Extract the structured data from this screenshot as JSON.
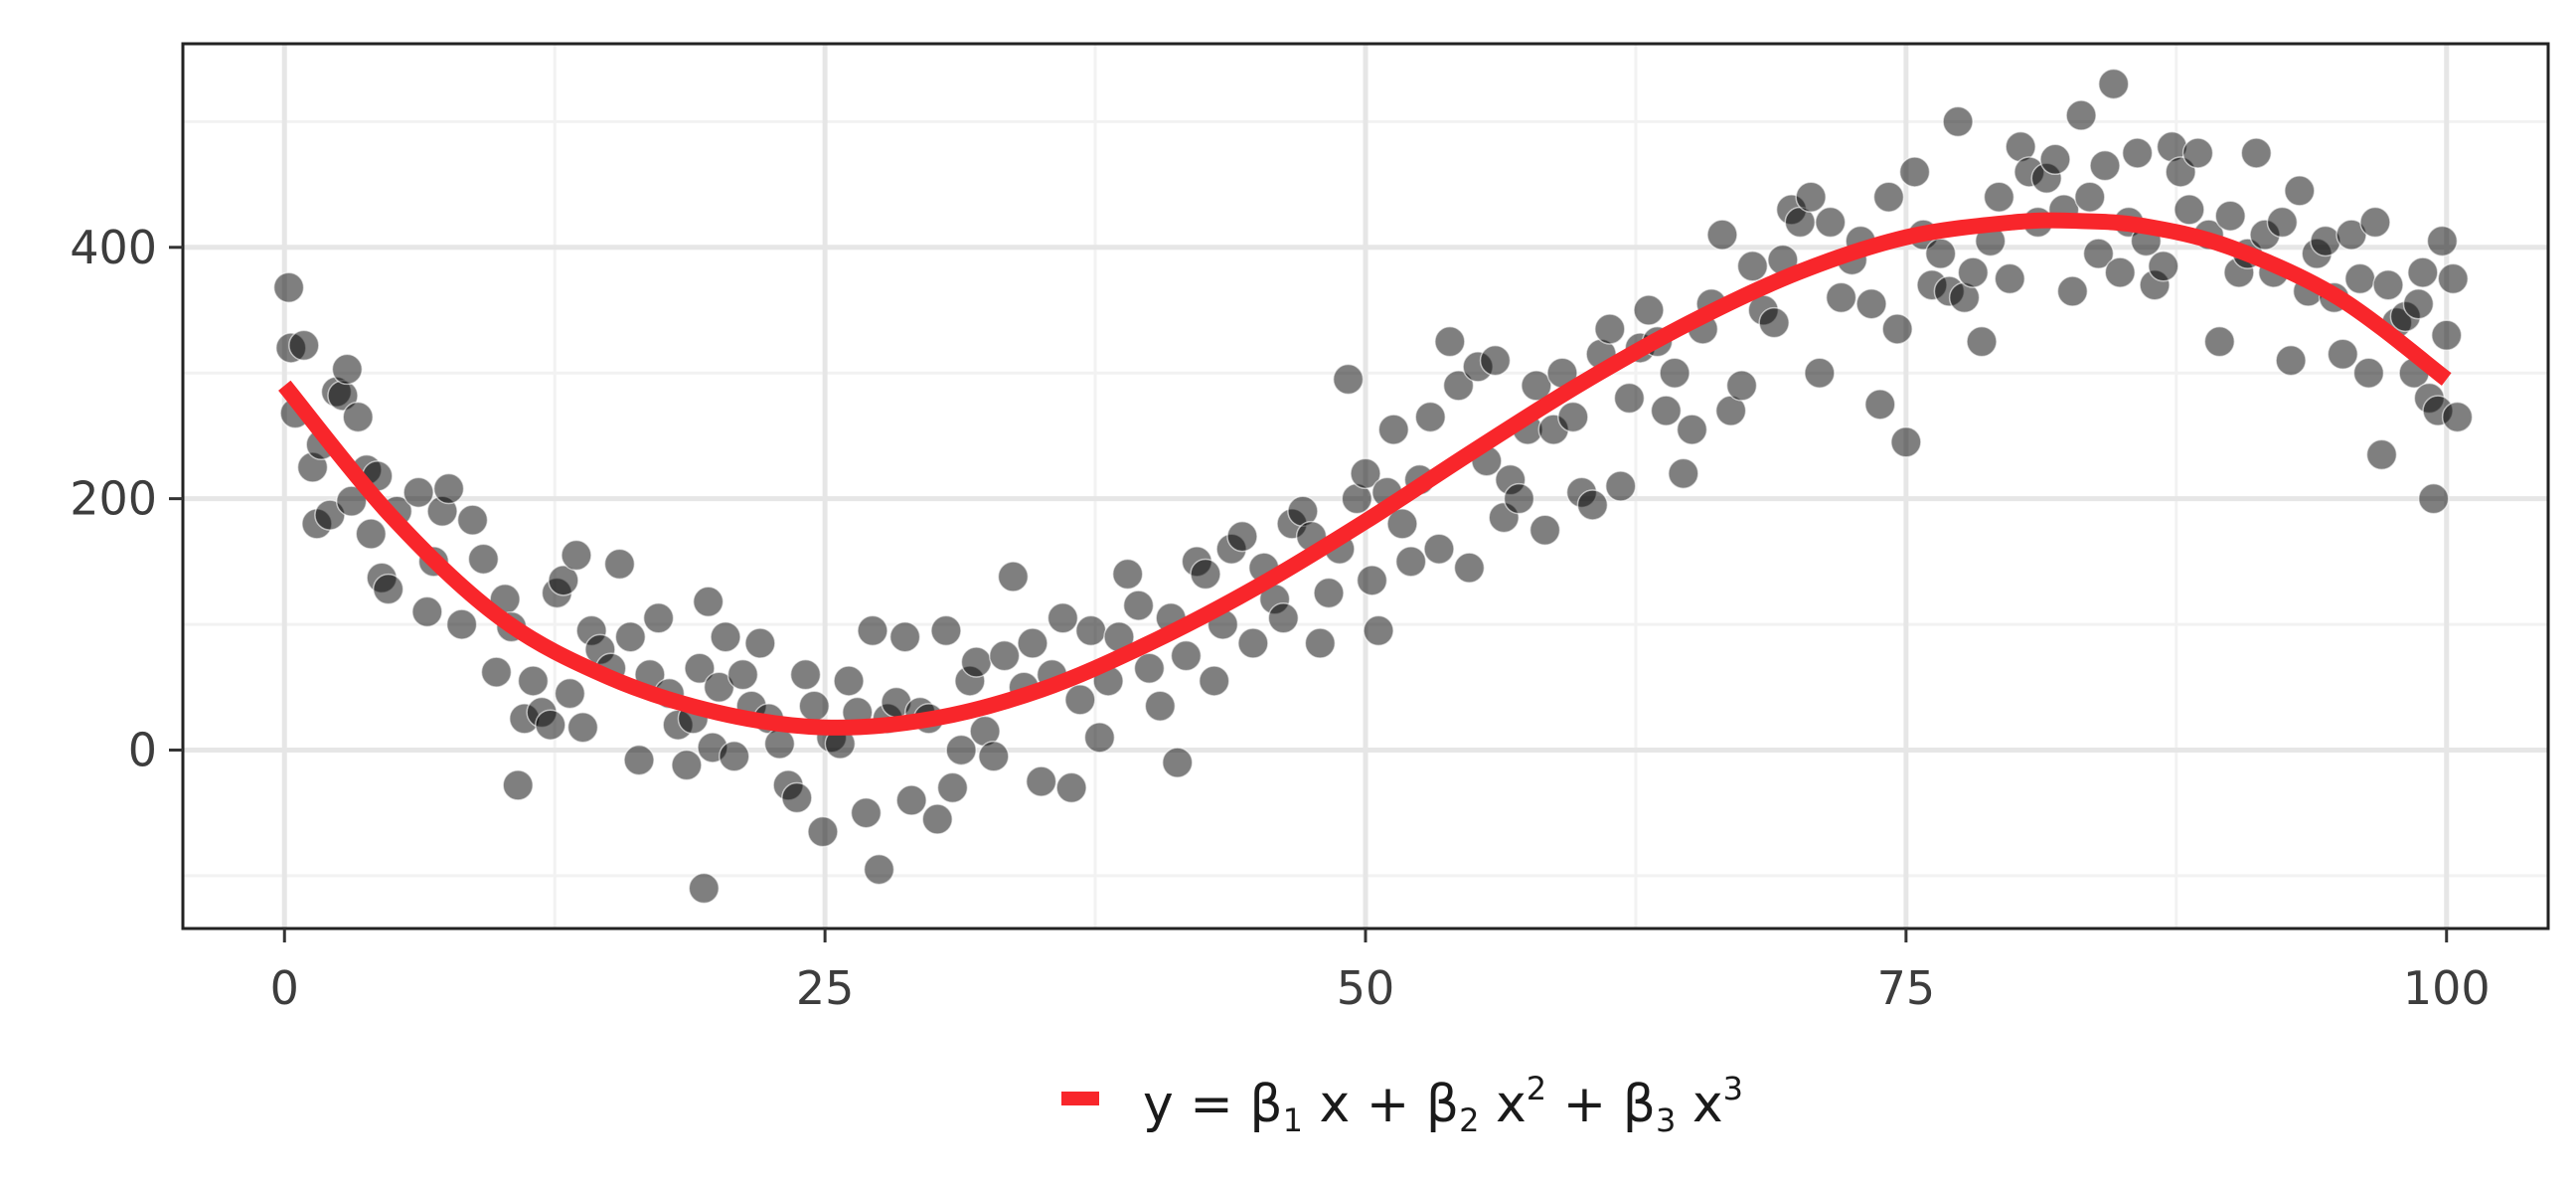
{
  "chart_data": {
    "type": "scatter",
    "title": "",
    "xlabel": "",
    "ylabel": "",
    "xlim": [
      -4.7,
      104.7
    ],
    "ylim": [
      -142,
      562
    ],
    "x_ticks": [
      0,
      25,
      50,
      75,
      100
    ],
    "y_ticks": [
      0,
      200,
      400
    ],
    "grid": true,
    "legend_position": "bottom",
    "colors": {
      "points": "#000000",
      "fit_line": "#f8262b",
      "grid_major": "#e6e6e6",
      "grid_minor": "#f2f2f2",
      "panel_border": "#222222"
    },
    "fit_curve": {
      "name": "y = β1 x + β2 x2 + β3 x3",
      "model": "cubic polynomial",
      "x_range": [
        0,
        100
      ],
      "knots": [
        {
          "x": 0,
          "y": 290
        },
        {
          "x": 5,
          "y": 185
        },
        {
          "x": 10,
          "y": 105
        },
        {
          "x": 15,
          "y": 58
        },
        {
          "x": 20,
          "y": 30
        },
        {
          "x": 25,
          "y": 18
        },
        {
          "x": 30,
          "y": 25
        },
        {
          "x": 35,
          "y": 48
        },
        {
          "x": 40,
          "y": 85
        },
        {
          "x": 45,
          "y": 130
        },
        {
          "x": 50,
          "y": 182
        },
        {
          "x": 55,
          "y": 238
        },
        {
          "x": 60,
          "y": 292
        },
        {
          "x": 65,
          "y": 340
        },
        {
          "x": 70,
          "y": 380
        },
        {
          "x": 75,
          "y": 408
        },
        {
          "x": 80,
          "y": 420
        },
        {
          "x": 83,
          "y": 421
        },
        {
          "x": 86,
          "y": 417
        },
        {
          "x": 90,
          "y": 400
        },
        {
          "x": 95,
          "y": 360
        },
        {
          "x": 100,
          "y": 295
        }
      ]
    },
    "scatter_points": [
      [
        0.2,
        368
      ],
      [
        0.3,
        320
      ],
      [
        0.5,
        268
      ],
      [
        0.9,
        322
      ],
      [
        1.3,
        225
      ],
      [
        1.5,
        180
      ],
      [
        1.7,
        243
      ],
      [
        2.1,
        187
      ],
      [
        2.4,
        285
      ],
      [
        2.7,
        282
      ],
      [
        2.9,
        303
      ],
      [
        3.1,
        198
      ],
      [
        3.4,
        265
      ],
      [
        3.8,
        223
      ],
      [
        4.0,
        172
      ],
      [
        4.3,
        218
      ],
      [
        4.5,
        137
      ],
      [
        4.8,
        128
      ],
      [
        5.2,
        190
      ],
      [
        6.2,
        205
      ],
      [
        6.6,
        110
      ],
      [
        6.9,
        150
      ],
      [
        7.3,
        190
      ],
      [
        7.6,
        208
      ],
      [
        8.2,
        100
      ],
      [
        8.7,
        183
      ],
      [
        9.2,
        152
      ],
      [
        9.8,
        62
      ],
      [
        10.2,
        120
      ],
      [
        10.5,
        98
      ],
      [
        10.8,
        -28
      ],
      [
        11.1,
        25
      ],
      [
        11.5,
        55
      ],
      [
        11.9,
        30
      ],
      [
        12.3,
        20
      ],
      [
        12.6,
        125
      ],
      [
        12.9,
        135
      ],
      [
        13.2,
        45
      ],
      [
        13.5,
        155
      ],
      [
        13.8,
        18
      ],
      [
        14.2,
        95
      ],
      [
        14.6,
        80
      ],
      [
        15.1,
        65
      ],
      [
        15.5,
        148
      ],
      [
        16.0,
        90
      ],
      [
        16.4,
        -8
      ],
      [
        16.9,
        60
      ],
      [
        17.3,
        105
      ],
      [
        17.8,
        45
      ],
      [
        18.2,
        20
      ],
      [
        18.6,
        -12
      ],
      [
        18.9,
        25
      ],
      [
        19.2,
        65
      ],
      [
        19.4,
        -110
      ],
      [
        19.6,
        118
      ],
      [
        19.8,
        2
      ],
      [
        20.1,
        50
      ],
      [
        20.4,
        90
      ],
      [
        20.8,
        -5
      ],
      [
        21.2,
        60
      ],
      [
        21.6,
        35
      ],
      [
        22.0,
        85
      ],
      [
        22.4,
        25
      ],
      [
        22.9,
        5
      ],
      [
        23.3,
        -28
      ],
      [
        23.7,
        -38
      ],
      [
        24.1,
        60
      ],
      [
        24.5,
        35
      ],
      [
        24.9,
        -65
      ],
      [
        25.3,
        10
      ],
      [
        25.7,
        5
      ],
      [
        26.1,
        55
      ],
      [
        26.5,
        30
      ],
      [
        26.9,
        -50
      ],
      [
        27.2,
        95
      ],
      [
        27.5,
        -95
      ],
      [
        27.9,
        25
      ],
      [
        28.3,
        38
      ],
      [
        28.7,
        90
      ],
      [
        29.0,
        -40
      ],
      [
        29.4,
        30
      ],
      [
        29.8,
        25
      ],
      [
        30.2,
        -55
      ],
      [
        30.6,
        95
      ],
      [
        30.9,
        -30
      ],
      [
        31.3,
        0
      ],
      [
        31.7,
        55
      ],
      [
        32.0,
        70
      ],
      [
        32.4,
        15
      ],
      [
        32.8,
        -5
      ],
      [
        33.3,
        75
      ],
      [
        33.7,
        138
      ],
      [
        34.2,
        50
      ],
      [
        34.6,
        85
      ],
      [
        35.0,
        -25
      ],
      [
        35.5,
        60
      ],
      [
        36.0,
        105
      ],
      [
        36.4,
        -30
      ],
      [
        36.8,
        40
      ],
      [
        37.3,
        95
      ],
      [
        37.7,
        10
      ],
      [
        38.1,
        55
      ],
      [
        38.6,
        90
      ],
      [
        39.0,
        140
      ],
      [
        39.5,
        115
      ],
      [
        40.0,
        65
      ],
      [
        40.5,
        35
      ],
      [
        41.0,
        105
      ],
      [
        41.3,
        -10
      ],
      [
        41.7,
        75
      ],
      [
        42.2,
        150
      ],
      [
        42.6,
        140
      ],
      [
        43.0,
        55
      ],
      [
        43.4,
        100
      ],
      [
        43.8,
        160
      ],
      [
        44.3,
        170
      ],
      [
        44.8,
        85
      ],
      [
        45.3,
        145
      ],
      [
        45.8,
        120
      ],
      [
        46.2,
        105
      ],
      [
        46.6,
        180
      ],
      [
        47.1,
        190
      ],
      [
        47.5,
        170
      ],
      [
        47.9,
        85
      ],
      [
        48.3,
        125
      ],
      [
        48.8,
        160
      ],
      [
        49.2,
        295
      ],
      [
        49.6,
        200
      ],
      [
        50.0,
        220
      ],
      [
        50.3,
        135
      ],
      [
        50.6,
        95
      ],
      [
        51.0,
        205
      ],
      [
        51.3,
        255
      ],
      [
        51.7,
        180
      ],
      [
        52.1,
        150
      ],
      [
        52.5,
        215
      ],
      [
        53.0,
        265
      ],
      [
        53.4,
        160
      ],
      [
        53.9,
        325
      ],
      [
        54.3,
        290
      ],
      [
        54.8,
        145
      ],
      [
        55.2,
        305
      ],
      [
        55.6,
        230
      ],
      [
        56.0,
        310
      ],
      [
        56.4,
        185
      ],
      [
        56.7,
        215
      ],
      [
        57.1,
        200
      ],
      [
        57.5,
        255
      ],
      [
        57.9,
        290
      ],
      [
        58.3,
        175
      ],
      [
        58.7,
        255
      ],
      [
        59.1,
        300
      ],
      [
        59.6,
        265
      ],
      [
        60.0,
        205
      ],
      [
        60.5,
        195
      ],
      [
        60.9,
        315
      ],
      [
        61.3,
        335
      ],
      [
        61.8,
        210
      ],
      [
        62.2,
        280
      ],
      [
        62.7,
        320
      ],
      [
        63.1,
        350
      ],
      [
        63.5,
        325
      ],
      [
        63.9,
        270
      ],
      [
        64.3,
        300
      ],
      [
        64.7,
        220
      ],
      [
        65.1,
        255
      ],
      [
        65.6,
        335
      ],
      [
        66.0,
        355
      ],
      [
        66.5,
        410
      ],
      [
        66.9,
        270
      ],
      [
        67.4,
        290
      ],
      [
        67.9,
        385
      ],
      [
        68.4,
        350
      ],
      [
        68.9,
        340
      ],
      [
        69.3,
        390
      ],
      [
        69.7,
        430
      ],
      [
        70.1,
        420
      ],
      [
        70.6,
        440
      ],
      [
        71.0,
        300
      ],
      [
        71.5,
        420
      ],
      [
        72.0,
        360
      ],
      [
        72.5,
        390
      ],
      [
        72.9,
        405
      ],
      [
        73.4,
        355
      ],
      [
        73.8,
        275
      ],
      [
        74.2,
        440
      ],
      [
        74.6,
        335
      ],
      [
        75.0,
        245
      ],
      [
        75.4,
        460
      ],
      [
        75.8,
        410
      ],
      [
        76.2,
        370
      ],
      [
        76.6,
        395
      ],
      [
        77.0,
        365
      ],
      [
        77.4,
        500
      ],
      [
        77.7,
        360
      ],
      [
        78.1,
        380
      ],
      [
        78.5,
        325
      ],
      [
        78.9,
        405
      ],
      [
        79.3,
        440
      ],
      [
        79.8,
        375
      ],
      [
        80.3,
        480
      ],
      [
        80.7,
        460
      ],
      [
        81.1,
        420
      ],
      [
        81.5,
        455
      ],
      [
        81.9,
        470
      ],
      [
        82.3,
        430
      ],
      [
        82.7,
        365
      ],
      [
        83.1,
        505
      ],
      [
        83.5,
        440
      ],
      [
        83.9,
        395
      ],
      [
        84.2,
        465
      ],
      [
        84.6,
        530
      ],
      [
        84.9,
        380
      ],
      [
        85.3,
        420
      ],
      [
        85.7,
        475
      ],
      [
        86.1,
        405
      ],
      [
        86.5,
        370
      ],
      [
        86.9,
        385
      ],
      [
        87.3,
        480
      ],
      [
        87.7,
        460
      ],
      [
        88.1,
        430
      ],
      [
        88.5,
        475
      ],
      [
        89.0,
        410
      ],
      [
        89.5,
        325
      ],
      [
        90.0,
        425
      ],
      [
        90.4,
        380
      ],
      [
        90.8,
        395
      ],
      [
        91.2,
        475
      ],
      [
        91.6,
        410
      ],
      [
        92.0,
        380
      ],
      [
        92.4,
        420
      ],
      [
        92.8,
        310
      ],
      [
        93.2,
        445
      ],
      [
        93.6,
        365
      ],
      [
        94.0,
        395
      ],
      [
        94.4,
        405
      ],
      [
        94.8,
        360
      ],
      [
        95.2,
        315
      ],
      [
        95.6,
        410
      ],
      [
        96.0,
        375
      ],
      [
        96.4,
        300
      ],
      [
        96.7,
        420
      ],
      [
        97.0,
        235
      ],
      [
        97.3,
        370
      ],
      [
        97.7,
        340
      ],
      [
        98.1,
        345
      ],
      [
        98.5,
        300
      ],
      [
        98.9,
        380
      ],
      [
        99.2,
        280
      ],
      [
        99.4,
        200
      ],
      [
        99.6,
        270
      ],
      [
        99.8,
        405
      ],
      [
        100.0,
        330
      ],
      [
        100.3,
        375
      ],
      [
        100.5,
        265
      ],
      [
        98.7,
        355
      ]
    ]
  },
  "legend": {
    "y_prefix": "y = β",
    "sub1": "1",
    "mid1": " x + β",
    "sub2": "2",
    "mid2": " x",
    "sup2": "2",
    "mid3": " + β",
    "sub3": "3",
    "mid4": " x",
    "sup3": "3"
  }
}
